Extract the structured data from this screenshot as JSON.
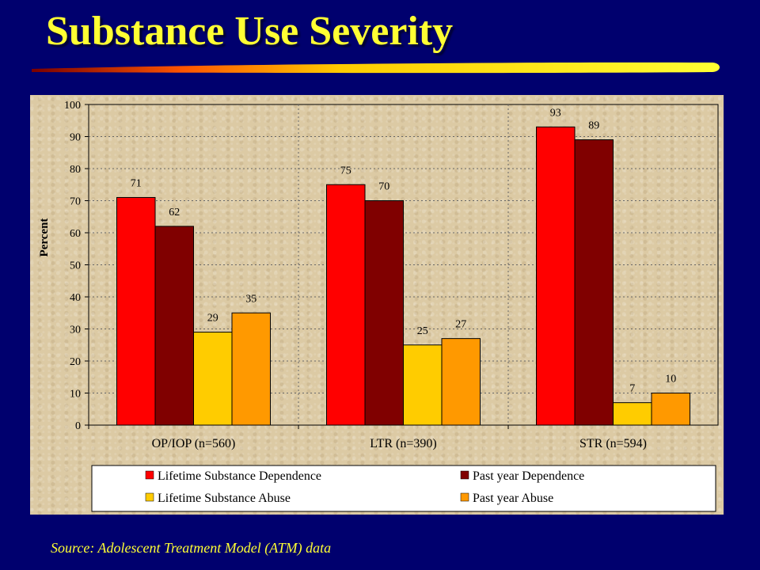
{
  "title": "Substance Use Severity",
  "source": "Source:  Adolescent Treatment Model (ATM) data",
  "chart_data": {
    "type": "bar",
    "title": "",
    "xlabel": "",
    "ylabel": "Percent",
    "ylim": [
      0,
      100
    ],
    "yticks": [
      0,
      10,
      20,
      30,
      40,
      50,
      60,
      70,
      80,
      90,
      100
    ],
    "grid": true,
    "legend_position": "bottom",
    "categories": [
      "OP/IOP (n=560)",
      "LTR (n=390)",
      "STR (n=594)"
    ],
    "series": [
      {
        "name": "Lifetime Substance Dependence",
        "color": "#ff0000",
        "values": [
          71,
          75,
          93
        ]
      },
      {
        "name": "Past year Dependence",
        "color": "#800000",
        "values": [
          62,
          70,
          89
        ]
      },
      {
        "name": "Lifetime Substance Abuse",
        "color": "#ffcc00",
        "values": [
          29,
          25,
          7
        ]
      },
      {
        "name": "Past year Abuse",
        "color": "#ff9900",
        "values": [
          35,
          27,
          10
        ]
      }
    ]
  }
}
